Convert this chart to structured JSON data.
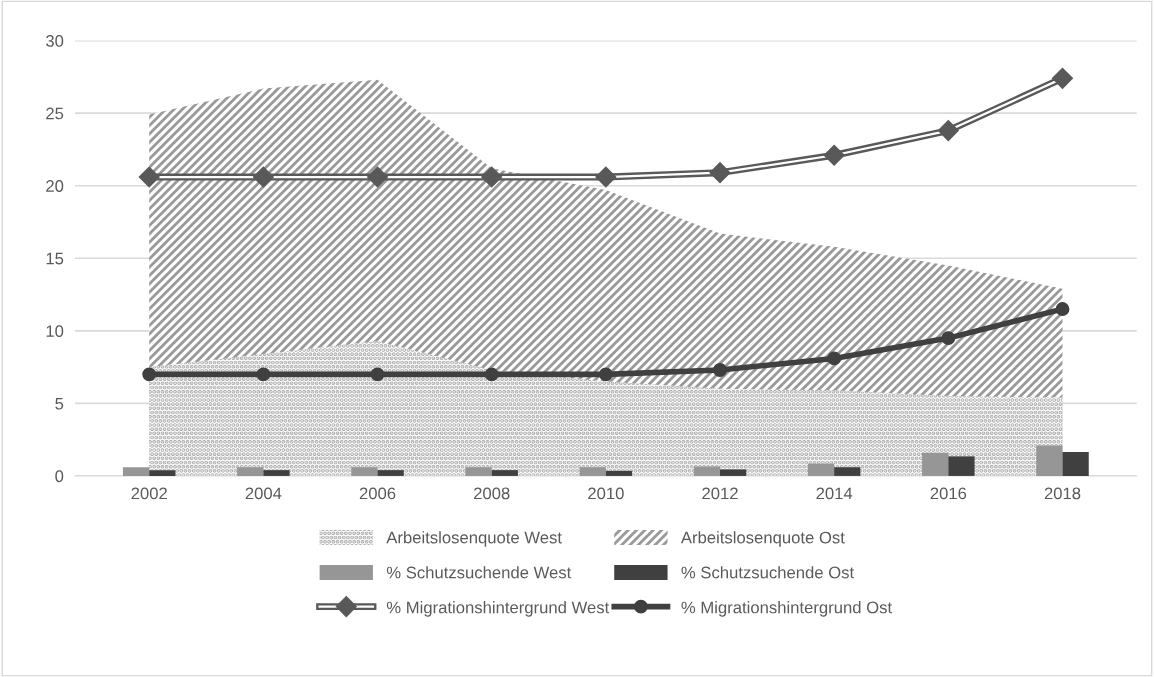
{
  "chart_data": {
    "type": "bar",
    "categories": [
      "2002",
      "2004",
      "2006",
      "2008",
      "2010",
      "2012",
      "2014",
      "2016",
      "2018"
    ],
    "ylim": [
      0,
      30
    ],
    "yticks": [
      0,
      5,
      10,
      15,
      20,
      25,
      30
    ],
    "grid": "y",
    "legend": "bottom",
    "series": [
      {
        "name": "Arbeitslosenquote West",
        "type": "area",
        "color": "#a6a6a6",
        "values": [
          7.5,
          8.4,
          9.3,
          7.3,
          6.5,
          6.0,
          5.9,
          5.5,
          5.4
        ]
      },
      {
        "name": "Arbeitslosenquote Ost",
        "type": "area",
        "color": "#999999",
        "values": [
          24.9,
          26.7,
          27.3,
          21.2,
          19.7,
          16.7,
          15.8,
          14.5,
          12.9
        ]
      },
      {
        "name": "% Schutzsuchende West",
        "color": "#969696",
        "values": [
          0.6,
          0.6,
          0.6,
          0.6,
          0.6,
          0.65,
          0.85,
          1.6,
          2.1
        ]
      },
      {
        "name": "% Schutzsuchende Ost",
        "color": "#404040",
        "values": [
          0.4,
          0.4,
          0.4,
          0.4,
          0.35,
          0.45,
          0.6,
          1.35,
          1.65
        ]
      },
      {
        "name": "% Migrationshintergrund West",
        "type": "line",
        "line_style": "solid",
        "marker": "diamond",
        "color": "#595959",
        "values": [
          20.6,
          20.6,
          20.6,
          20.6,
          20.6,
          20.9,
          22.1,
          23.8,
          27.4
        ]
      },
      {
        "name": "% Migrationshintergrund Ost",
        "type": "line",
        "line_style": "solid",
        "marker": "circle",
        "color": "#404040",
        "values": [
          7.0,
          7.0,
          7.0,
          7.0,
          7.0,
          7.3,
          8.1,
          9.5,
          11.5
        ]
      }
    ]
  }
}
